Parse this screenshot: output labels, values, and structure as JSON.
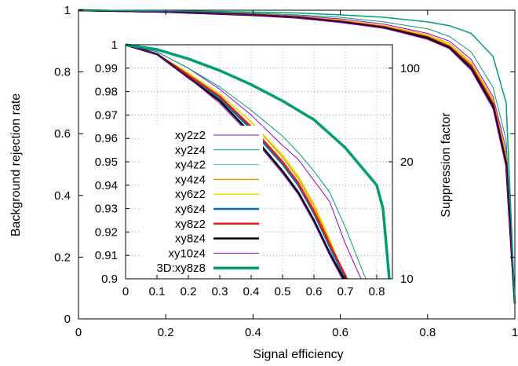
{
  "chart_data": [
    {
      "type": "line",
      "panel": "main",
      "xlabel": "Signal efficiency",
      "ylabel": "Background rejection rate",
      "xlim": [
        0,
        1
      ],
      "ylim": [
        0,
        1
      ],
      "xticks": [
        "0",
        "0.2",
        "0.4",
        "0.6",
        "0.8",
        "1"
      ],
      "yticks": [
        "0",
        "0.2",
        "0.4",
        "0.6",
        "0.8",
        "1"
      ],
      "grid": false,
      "series": [
        {
          "name": "xy2z2",
          "color": "#9400d3",
          "width": 1,
          "x": [
            0,
            0.2,
            0.4,
            0.5,
            0.6,
            0.7,
            0.8,
            0.85,
            0.9,
            0.95,
            0.98,
            1.0
          ],
          "y": [
            1.0,
            0.996,
            0.988,
            0.982,
            0.972,
            0.955,
            0.925,
            0.9,
            0.84,
            0.72,
            0.55,
            0.05
          ]
        },
        {
          "name": "xy2z4",
          "color": "#009e73",
          "width": 1,
          "x": [
            0,
            0.2,
            0.4,
            0.5,
            0.6,
            0.7,
            0.8,
            0.85,
            0.9,
            0.95,
            0.98,
            1.0
          ],
          "y": [
            1.0,
            0.997,
            0.99,
            0.985,
            0.977,
            0.962,
            0.94,
            0.915,
            0.865,
            0.75,
            0.58,
            0.05
          ]
        },
        {
          "name": "xy4z2",
          "color": "#56b4e9",
          "width": 1,
          "x": [
            0,
            0.2,
            0.4,
            0.5,
            0.6,
            0.7,
            0.8,
            0.85,
            0.9,
            0.95,
            0.98,
            1.0
          ],
          "y": [
            1.0,
            0.995,
            0.986,
            0.978,
            0.965,
            0.948,
            0.915,
            0.885,
            0.82,
            0.7,
            0.52,
            0.05
          ]
        },
        {
          "name": "xy4z4",
          "color": "#e69f00",
          "width": 1.5,
          "x": [
            0,
            0.2,
            0.4,
            0.5,
            0.6,
            0.7,
            0.8,
            0.85,
            0.9,
            0.95,
            0.98,
            1.0
          ],
          "y": [
            1.0,
            0.996,
            0.987,
            0.98,
            0.968,
            0.95,
            0.92,
            0.892,
            0.83,
            0.71,
            0.53,
            0.05
          ]
        },
        {
          "name": "xy6z2",
          "color": "#e5e000",
          "width": 1.5,
          "x": [
            0,
            0.2,
            0.4,
            0.5,
            0.6,
            0.7,
            0.8,
            0.85,
            0.9,
            0.95,
            0.98,
            1.0
          ],
          "y": [
            1.0,
            0.996,
            0.987,
            0.98,
            0.967,
            0.95,
            0.918,
            0.89,
            0.828,
            0.705,
            0.52,
            0.05
          ]
        },
        {
          "name": "xy6z4",
          "color": "#0072b2",
          "width": 2.5,
          "x": [
            0,
            0.2,
            0.4,
            0.5,
            0.6,
            0.7,
            0.8,
            0.85,
            0.9,
            0.95,
            0.98,
            1.0
          ],
          "y": [
            1.0,
            0.995,
            0.985,
            0.977,
            0.963,
            0.945,
            0.912,
            0.882,
            0.818,
            0.695,
            0.51,
            0.05
          ]
        },
        {
          "name": "xy8z2",
          "color": "#e51e10",
          "width": 2.5,
          "x": [
            0,
            0.2,
            0.4,
            0.5,
            0.6,
            0.7,
            0.8,
            0.85,
            0.9,
            0.95,
            0.98,
            1.0
          ],
          "y": [
            1.0,
            0.995,
            0.986,
            0.978,
            0.964,
            0.946,
            0.913,
            0.883,
            0.82,
            0.698,
            0.51,
            0.05
          ]
        },
        {
          "name": "xy8z4",
          "color": "#000000",
          "width": 2.5,
          "x": [
            0,
            0.2,
            0.4,
            0.5,
            0.6,
            0.7,
            0.8,
            0.85,
            0.9,
            0.95,
            0.98,
            1.0
          ],
          "y": [
            1.0,
            0.995,
            0.984,
            0.976,
            0.962,
            0.943,
            0.91,
            0.878,
            0.812,
            0.69,
            0.5,
            0.05
          ]
        },
        {
          "name": "xy10z4",
          "color": "#9400d3",
          "width": 1,
          "x": [
            0,
            0.2,
            0.4,
            0.5,
            0.6,
            0.7,
            0.8,
            0.85,
            0.9,
            0.95,
            0.98,
            1.0
          ],
          "y": [
            1.0,
            0.995,
            0.984,
            0.975,
            0.96,
            0.942,
            0.905,
            0.875,
            0.805,
            0.68,
            0.49,
            0.05
          ]
        },
        {
          "name": "3D:xy8z8",
          "color": "#009e73",
          "width": 1.5,
          "x": [
            0,
            0.2,
            0.4,
            0.5,
            0.6,
            0.7,
            0.8,
            0.85,
            0.9,
            0.95,
            0.98,
            1.0
          ],
          "y": [
            1.0,
            0.998,
            0.994,
            0.991,
            0.985,
            0.977,
            0.962,
            0.95,
            0.925,
            0.85,
            0.7,
            0.05
          ]
        }
      ]
    },
    {
      "type": "line",
      "panel": "inset",
      "ylabel_right": "Suppression factor",
      "xlim": [
        0,
        0.85
      ],
      "ylim": [
        0.9,
        1
      ],
      "xticks": [
        "0",
        "0.1",
        "0.2",
        "0.3",
        "0.4",
        "0.5",
        "0.6",
        "0.7",
        "0.8"
      ],
      "yticks": [
        "0.9",
        "0.91",
        "0.92",
        "0.93",
        "0.94",
        "0.95",
        "0.96",
        "0.97",
        "0.98",
        "0.99",
        "1"
      ],
      "y2ticks": [
        "10",
        "20",
        "100"
      ],
      "grid": true,
      "legend": "left",
      "series": [
        {
          "name": "xy2z2",
          "color": "#9400d3",
          "width": 1,
          "x": [
            0,
            0.1,
            0.2,
            0.3,
            0.4,
            0.5,
            0.55,
            0.6,
            0.65,
            0.7,
            0.75
          ],
          "y": [
            1.0,
            0.997,
            0.99,
            0.981,
            0.97,
            0.957,
            0.951,
            0.942,
            0.933,
            0.915,
            0.9
          ]
        },
        {
          "name": "xy2z4",
          "color": "#009e73",
          "width": 1,
          "x": [
            0,
            0.1,
            0.2,
            0.3,
            0.4,
            0.5,
            0.55,
            0.6,
            0.65,
            0.7,
            0.75,
            0.765
          ],
          "y": [
            1.0,
            0.997,
            0.99,
            0.982,
            0.972,
            0.961,
            0.954,
            0.946,
            0.937,
            0.922,
            0.905,
            0.9
          ]
        },
        {
          "name": "xy4z2",
          "color": "#56b4e9",
          "width": 1,
          "x": [
            0,
            0.1,
            0.2,
            0.3,
            0.4,
            0.5,
            0.55,
            0.6,
            0.65,
            0.69
          ],
          "y": [
            1.0,
            0.996,
            0.988,
            0.978,
            0.965,
            0.95,
            0.94,
            0.928,
            0.913,
            0.9
          ]
        },
        {
          "name": "xy4z4",
          "color": "#e69f00",
          "width": 1.5,
          "x": [
            0,
            0.1,
            0.2,
            0.3,
            0.4,
            0.5,
            0.55,
            0.6,
            0.65,
            0.695
          ],
          "y": [
            1.0,
            0.996,
            0.988,
            0.979,
            0.967,
            0.952,
            0.943,
            0.931,
            0.916,
            0.9
          ]
        },
        {
          "name": "xy6z2",
          "color": "#e5e000",
          "width": 1.5,
          "x": [
            0,
            0.1,
            0.2,
            0.3,
            0.4,
            0.5,
            0.55,
            0.6,
            0.65,
            0.7
          ],
          "y": [
            1.0,
            0.996,
            0.988,
            0.979,
            0.967,
            0.953,
            0.944,
            0.932,
            0.917,
            0.9
          ]
        },
        {
          "name": "xy6z4",
          "color": "#0072b2",
          "width": 2.5,
          "x": [
            0,
            0.1,
            0.2,
            0.3,
            0.4,
            0.5,
            0.55,
            0.6,
            0.65,
            0.7
          ],
          "y": [
            1.0,
            0.996,
            0.987,
            0.977,
            0.964,
            0.949,
            0.94,
            0.928,
            0.914,
            0.9
          ]
        },
        {
          "name": "xy8z2",
          "color": "#e51e10",
          "width": 2.5,
          "x": [
            0,
            0.1,
            0.2,
            0.3,
            0.4,
            0.5,
            0.55,
            0.6,
            0.65,
            0.705
          ],
          "y": [
            1.0,
            0.996,
            0.987,
            0.978,
            0.965,
            0.95,
            0.941,
            0.929,
            0.915,
            0.9
          ]
        },
        {
          "name": "xy8z4",
          "color": "#000000",
          "width": 2.5,
          "x": [
            0,
            0.1,
            0.2,
            0.3,
            0.4,
            0.5,
            0.55,
            0.6,
            0.65,
            0.695
          ],
          "y": [
            1.0,
            0.996,
            0.986,
            0.976,
            0.962,
            0.946,
            0.937,
            0.925,
            0.911,
            0.9
          ]
        },
        {
          "name": "xy10z4",
          "color": "#9400d3",
          "width": 1,
          "x": [
            0,
            0.1,
            0.2,
            0.3,
            0.4,
            0.5,
            0.55,
            0.6,
            0.65,
            0.69
          ],
          "y": [
            1.0,
            0.996,
            0.986,
            0.975,
            0.961,
            0.945,
            0.936,
            0.924,
            0.91,
            0.9
          ]
        },
        {
          "name": "3D:xy8z8",
          "color": "#009e73",
          "width": 3.5,
          "x": [
            0,
            0.1,
            0.2,
            0.3,
            0.4,
            0.5,
            0.6,
            0.65,
            0.7,
            0.75,
            0.8,
            0.82,
            0.84
          ],
          "y": [
            1.0,
            0.998,
            0.994,
            0.989,
            0.983,
            0.976,
            0.968,
            0.962,
            0.956,
            0.948,
            0.94,
            0.93,
            0.9
          ]
        }
      ]
    }
  ]
}
